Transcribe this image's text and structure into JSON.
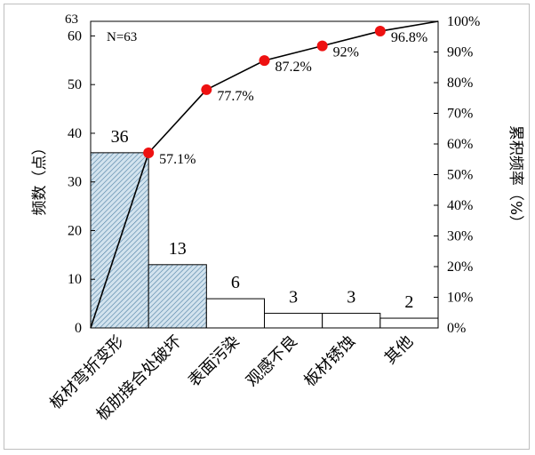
{
  "chart_data": {
    "type": "pareto",
    "title": "",
    "annotation": "N=63",
    "categories": [
      "板材弯折变形",
      "板肋接合处破坏",
      "表面污染",
      "观感不良",
      "板材锈蚀",
      "其他"
    ],
    "values": [
      36,
      13,
      6,
      3,
      3,
      2
    ],
    "cumulative_percent": [
      57.1,
      77.7,
      87.2,
      92,
      96.8
    ],
    "cumulative_labels": [
      "57.1%",
      "77.7%",
      "87.2%",
      "92%",
      "96.8%"
    ],
    "ylabel_left": "频数（点）",
    "ylabel_right": "累积频率（%）",
    "ylim_left": [
      0,
      63
    ],
    "ylim_right": [
      0,
      100
    ],
    "left_ticks": [
      "0",
      "10",
      "20",
      "30",
      "40",
      "50",
      "60"
    ],
    "left_top_label": "63",
    "right_ticks": [
      "0%",
      "10%",
      "20%",
      "30%",
      "40%",
      "50%",
      "60%",
      "70%",
      "80%",
      "90%",
      "100%"
    ],
    "grid": false,
    "colors": {
      "hatched_bar_fill": "#d3e3ee",
      "hatch_line": "#4d7fa3",
      "plain_bar_fill": "#ffffff",
      "marker": "#ee1111",
      "line": "#000000"
    }
  }
}
